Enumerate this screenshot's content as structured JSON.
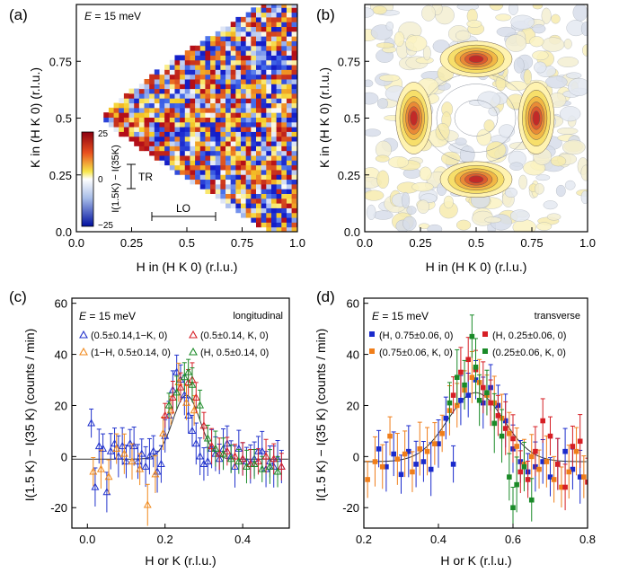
{
  "chart_data": [
    {
      "panel": "(a)",
      "type": "heatmap",
      "annotation": "E = 15 meV",
      "xlabel": "H in (H K 0) (r.l.u.)",
      "ylabel": "K in (H K 0) (r.l.u.)",
      "xlim": [
        0,
        1.0
      ],
      "ylim": [
        0,
        1.0
      ],
      "xticks": [
        "0.0",
        "0.25",
        "0.5",
        "0.75",
        "1.0"
      ],
      "yticks": [
        "0.0",
        "0.25",
        "0.5",
        "0.75"
      ],
      "colorbar": {
        "label": "I(1.5K) − I(35K)",
        "min": -25,
        "max": 25,
        "ticks": [
          "25",
          "0",
          "−25"
        ]
      },
      "scan_labels": [
        "TR",
        "LO"
      ],
      "coverage": "wedge-shaped detector coverage from (0.1, 0.5) opening toward H = 1.0",
      "colors": {
        "high": "#c0141c",
        "mid": "#ffffff",
        "yellow": "#f7e64a",
        "low": "#1a2cd6"
      }
    },
    {
      "panel": "(b)",
      "type": "heatmap",
      "xlabel": "H in (H K 0) (r.l.u.)",
      "ylabel": "K in (H K 0) (r.l.u.)",
      "xlim": [
        0,
        1.0
      ],
      "ylim": [
        0,
        1.0
      ],
      "xticks": [
        "0.0",
        "0.25",
        "0.5",
        "0.75",
        "1.0"
      ],
      "yticks": [
        "0.0",
        "0.25",
        "0.5",
        "0.75"
      ],
      "peaks": [
        {
          "h": 0.5,
          "k": 0.76,
          "elongation": "along H"
        },
        {
          "h": 0.5,
          "k": 0.23,
          "elongation": "along H"
        },
        {
          "h": 0.22,
          "k": 0.5,
          "elongation": "along K"
        },
        {
          "h": 0.77,
          "k": 0.5,
          "elongation": "along K"
        }
      ]
    },
    {
      "panel": "(c)",
      "type": "scatter",
      "annotation": "E = 15 meV",
      "mode_label": "longitudinal",
      "xlabel": "H or K (r.l.u.)",
      "ylabel": "I(1.5 K) − I(35 K) (counts / min)",
      "xlim": [
        -0.04,
        0.52
      ],
      "ylim": [
        -28,
        62
      ],
      "xticks": [
        "0.0",
        "0.2",
        "0.4"
      ],
      "yticks": [
        "-20",
        "0",
        "20",
        "40",
        "60"
      ],
      "series": [
        {
          "name": "(0.5±0.14,1−K, 0)",
          "color": "#2233cc",
          "marker": "triangle-open",
          "x": [
            0.01,
            0.02,
            0.03,
            0.04,
            0.05,
            0.06,
            0.07,
            0.08,
            0.09,
            0.1,
            0.11,
            0.12,
            0.13,
            0.14,
            0.15,
            0.16,
            0.17,
            0.18,
            0.19,
            0.2,
            0.21,
            0.22,
            0.23,
            0.24,
            0.25,
            0.26,
            0.27,
            0.28,
            0.29,
            0.3,
            0.31,
            0.32,
            0.33,
            0.34,
            0.35,
            0.36,
            0.37,
            0.38,
            0.39,
            0.4,
            0.41,
            0.42,
            0.43,
            0.44,
            0.45,
            0.46,
            0.47,
            0.48,
            0.49,
            0.5
          ],
          "y": [
            13,
            -12,
            4,
            3,
            -14,
            2,
            5,
            0,
            4,
            -2,
            5,
            4,
            -2,
            1,
            -4,
            0,
            2,
            -6,
            -3,
            8,
            16,
            26,
            33,
            30,
            24,
            16,
            10,
            5,
            0,
            -3,
            -2,
            3,
            1,
            -1,
            3,
            5,
            0,
            -4,
            3,
            -1,
            -2,
            -3,
            -1,
            2,
            2,
            -5,
            -2,
            -4,
            -1,
            -4
          ],
          "err": 7
        },
        {
          "name": "(1−H, 0.5±0.14, 0)",
          "color": "#f08a1e",
          "marker": "triangle-open",
          "x": [
            0.015,
            0.035,
            0.055,
            0.075,
            0.095,
            0.115,
            0.135,
            0.155,
            0.175,
            0.195,
            0.215,
            0.235,
            0.255,
            0.275
          ],
          "y": [
            -6,
            -5,
            -8,
            3,
            1,
            -2,
            -5,
            -19,
            -7,
            9,
            18,
            29,
            21,
            18
          ],
          "err": 7
        },
        {
          "name": "(0.5±0.14, K, 0)",
          "color": "#d62028",
          "marker": "triangle-open",
          "x": [
            0.2,
            0.22,
            0.24,
            0.26,
            0.27,
            0.28,
            0.3,
            0.32,
            0.34,
            0.36,
            0.38,
            0.4,
            0.42,
            0.44,
            0.46,
            0.48,
            0.5
          ],
          "y": [
            16,
            23,
            27,
            29,
            30,
            23,
            12,
            4,
            1,
            2,
            0,
            -1,
            -3,
            -2,
            0,
            -1,
            -4
          ],
          "err": 6
        },
        {
          "name": "(H, 0.5±0.14, 0)",
          "color": "#1e8c2a",
          "marker": "triangle-open",
          "x": [
            0.21,
            0.23,
            0.25,
            0.26,
            0.27,
            0.29,
            0.31,
            0.33,
            0.35,
            0.37,
            0.39,
            0.41,
            0.43,
            0.45,
            0.47,
            0.49
          ],
          "y": [
            20,
            25,
            31,
            33,
            28,
            20,
            7,
            3,
            1,
            -1,
            -2,
            -4,
            -3,
            -5,
            -4,
            -6
          ],
          "err": 6
        }
      ]
    },
    {
      "panel": "(d)",
      "type": "scatter",
      "annotation": "E = 15 meV",
      "mode_label": "transverse",
      "xlabel": "H or K (r.l.u.)",
      "ylabel": "I(1.5 K) − I(35 K) (counts / min)",
      "xlim": [
        0.2,
        0.8
      ],
      "ylim": [
        -28,
        62
      ],
      "xticks": [
        "0.2",
        "0.4",
        "0.6",
        "0.8"
      ],
      "yticks": [
        "-20",
        "0",
        "20",
        "40",
        "60"
      ],
      "series": [
        {
          "name": "(H, 0.75±0.06, 0)",
          "color": "#1a2acc",
          "marker": "square-filled",
          "x": [
            0.24,
            0.26,
            0.28,
            0.3,
            0.32,
            0.34,
            0.36,
            0.38,
            0.4,
            0.42,
            0.44,
            0.46,
            0.48,
            0.5,
            0.52,
            0.54,
            0.56,
            0.58,
            0.6,
            0.62,
            0.64,
            0.66,
            0.68,
            0.7,
            0.72,
            0.74,
            0.76,
            0.78
          ],
          "y": [
            3,
            -4,
            1,
            -7,
            2,
            -3,
            -2,
            -5,
            5,
            15,
            -3,
            22,
            24,
            30,
            21,
            27,
            20,
            14,
            3,
            -2,
            -6,
            -4,
            -2,
            -8,
            -3,
            2,
            -5,
            -8
          ],
          "err": 9
        },
        {
          "name": "(0.75±0.06, K, 0)",
          "color": "#f07e1a",
          "marker": "square-filled",
          "x": [
            0.21,
            0.23,
            0.25,
            0.27,
            0.29,
            0.31,
            0.33,
            0.35,
            0.37,
            0.39,
            0.41,
            0.43,
            0.45,
            0.47,
            0.49,
            0.51,
            0.53,
            0.55,
            0.57,
            0.59,
            0.61,
            0.63,
            0.65,
            0.67,
            0.69,
            0.71,
            0.73,
            0.75,
            0.77,
            0.79
          ],
          "y": [
            -9,
            -2,
            -4,
            8,
            -1,
            1,
            -6,
            3,
            2,
            5,
            9,
            18,
            20,
            26,
            31,
            29,
            24,
            21,
            15,
            9,
            4,
            -3,
            0,
            -5,
            -2,
            -9,
            -12,
            -6,
            2,
            -8
          ],
          "err": 9
        },
        {
          "name": "(H, 0.25±0.06, 0)",
          "color": "#d61e24",
          "marker": "square-filled",
          "x": [
            0.44,
            0.46,
            0.48,
            0.5,
            0.52,
            0.54,
            0.56,
            0.58,
            0.6,
            0.62,
            0.64,
            0.66,
            0.68,
            0.7,
            0.72,
            0.74,
            0.76,
            0.78,
            0.8
          ],
          "y": [
            24,
            33,
            38,
            34,
            27,
            21,
            16,
            11,
            7,
            -6,
            -9,
            2,
            14,
            8,
            -3,
            -12,
            4,
            6,
            -10
          ],
          "err": 9
        },
        {
          "name": "(0.25±0.06, K, 0)",
          "color": "#1a8a28",
          "marker": "square-filled",
          "x": [
            0.43,
            0.45,
            0.47,
            0.49,
            0.5,
            0.51,
            0.53,
            0.55,
            0.57,
            0.59,
            0.6,
            0.61,
            0.63,
            0.65
          ],
          "y": [
            21,
            31,
            28,
            47,
            35,
            22,
            25,
            13,
            8,
            -8,
            -20,
            -11,
            -4,
            -17
          ],
          "err": 10
        }
      ]
    }
  ]
}
